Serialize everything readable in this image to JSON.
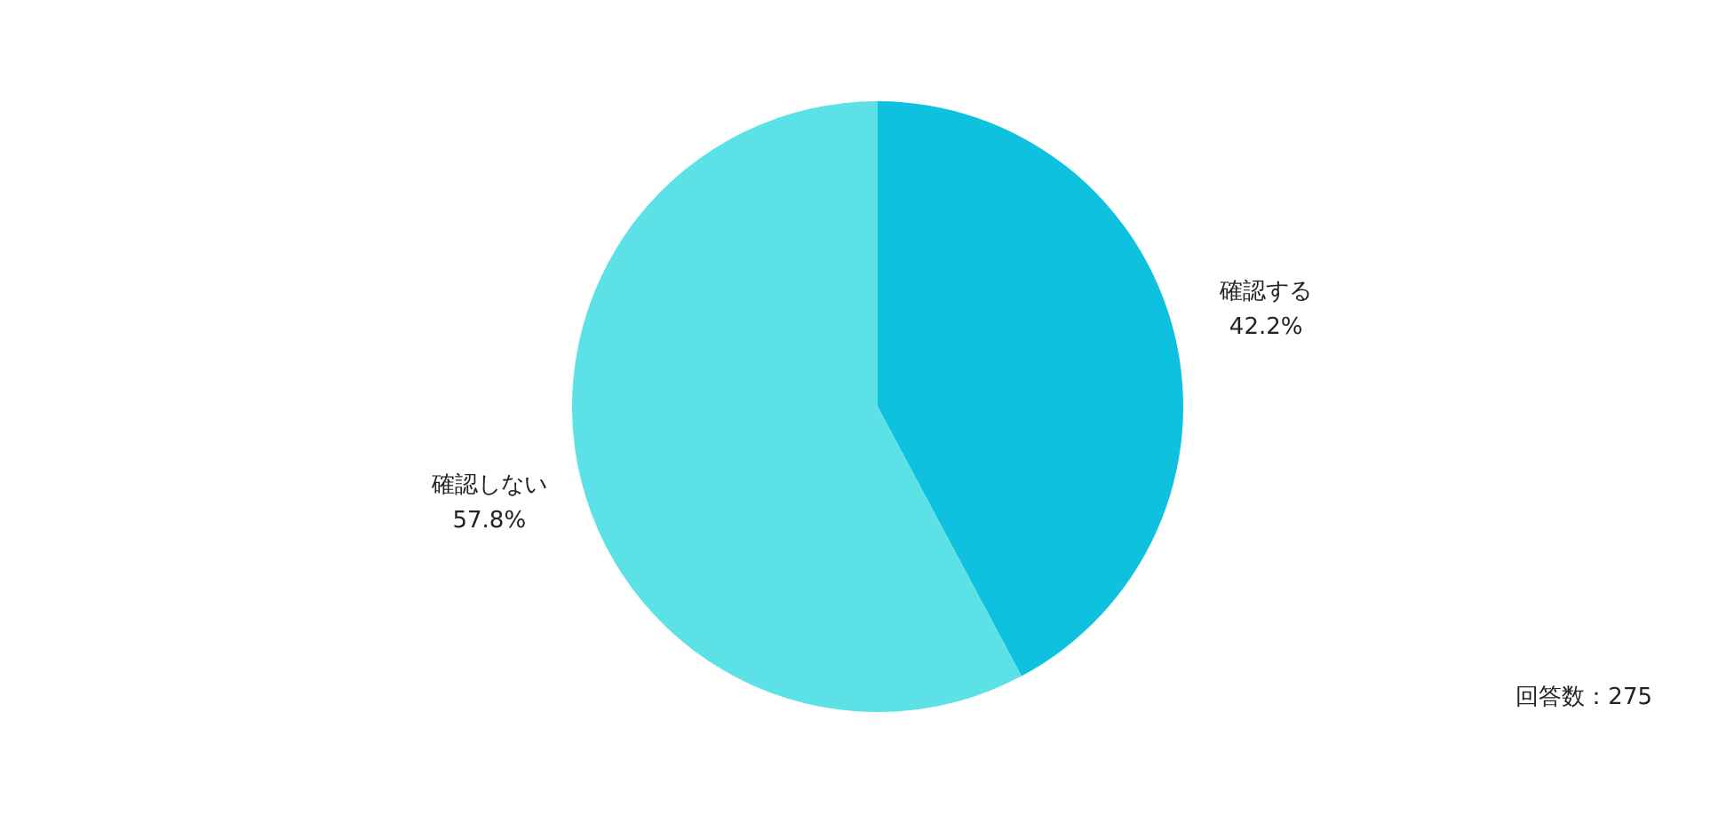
{
  "chart_data": {
    "type": "pie",
    "categories": [
      "確認する",
      "確認しない"
    ],
    "values": [
      42.2,
      57.8
    ],
    "value_labels": [
      "42.2%",
      "57.8%"
    ],
    "colors": [
      "#0ec1df",
      "#5ce1e6"
    ],
    "annotations": [
      "回答数：275"
    ]
  }
}
